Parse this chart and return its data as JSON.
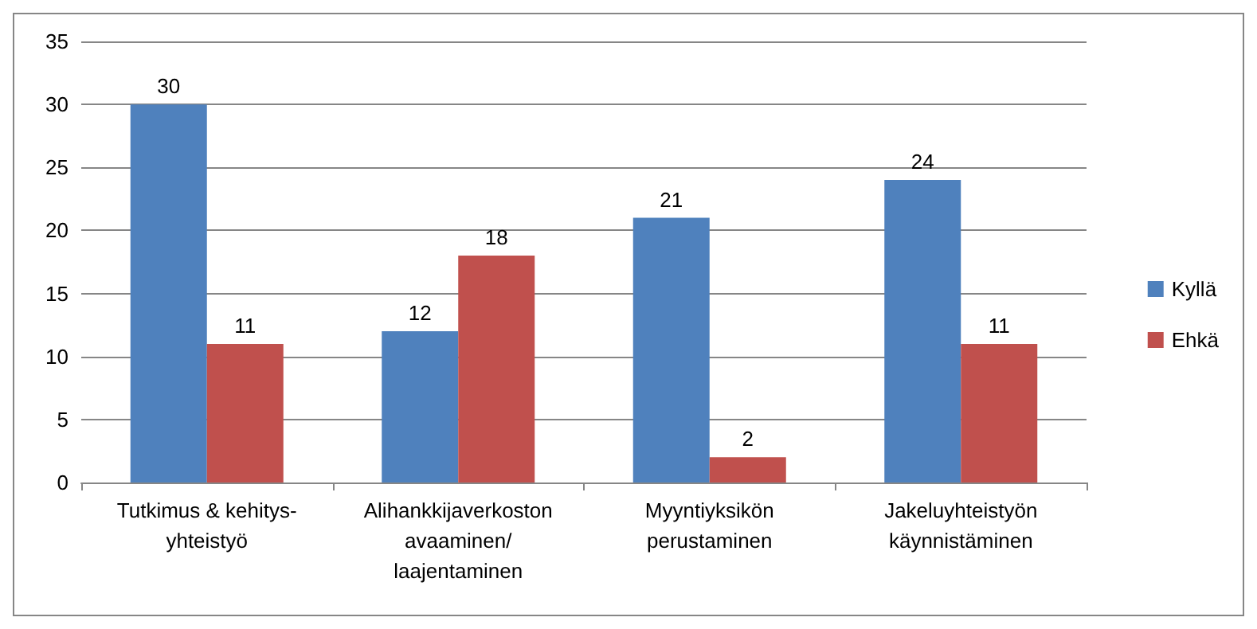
{
  "chart_data": {
    "type": "bar",
    "categories": [
      "Tutkimus & kehitys-\nyhteistyö",
      "Alihankkijaverkoston\navaaminen/\nlaajentaminen",
      "Myyntiyksikön\nperustaminen",
      "Jakeluyhteistyön\nkäynnistäminen"
    ],
    "series": [
      {
        "name": "Kyllä",
        "color": "#4f81bd",
        "values": [
          30,
          12,
          21,
          24
        ]
      },
      {
        "name": "Ehkä",
        "color": "#c0504d",
        "values": [
          11,
          18,
          2,
          11
        ]
      }
    ],
    "ylim": [
      0,
      35
    ],
    "yticks": [
      0,
      5,
      10,
      15,
      20,
      25,
      30,
      35
    ],
    "grid": "y",
    "legend": "right",
    "data_labels": true
  }
}
